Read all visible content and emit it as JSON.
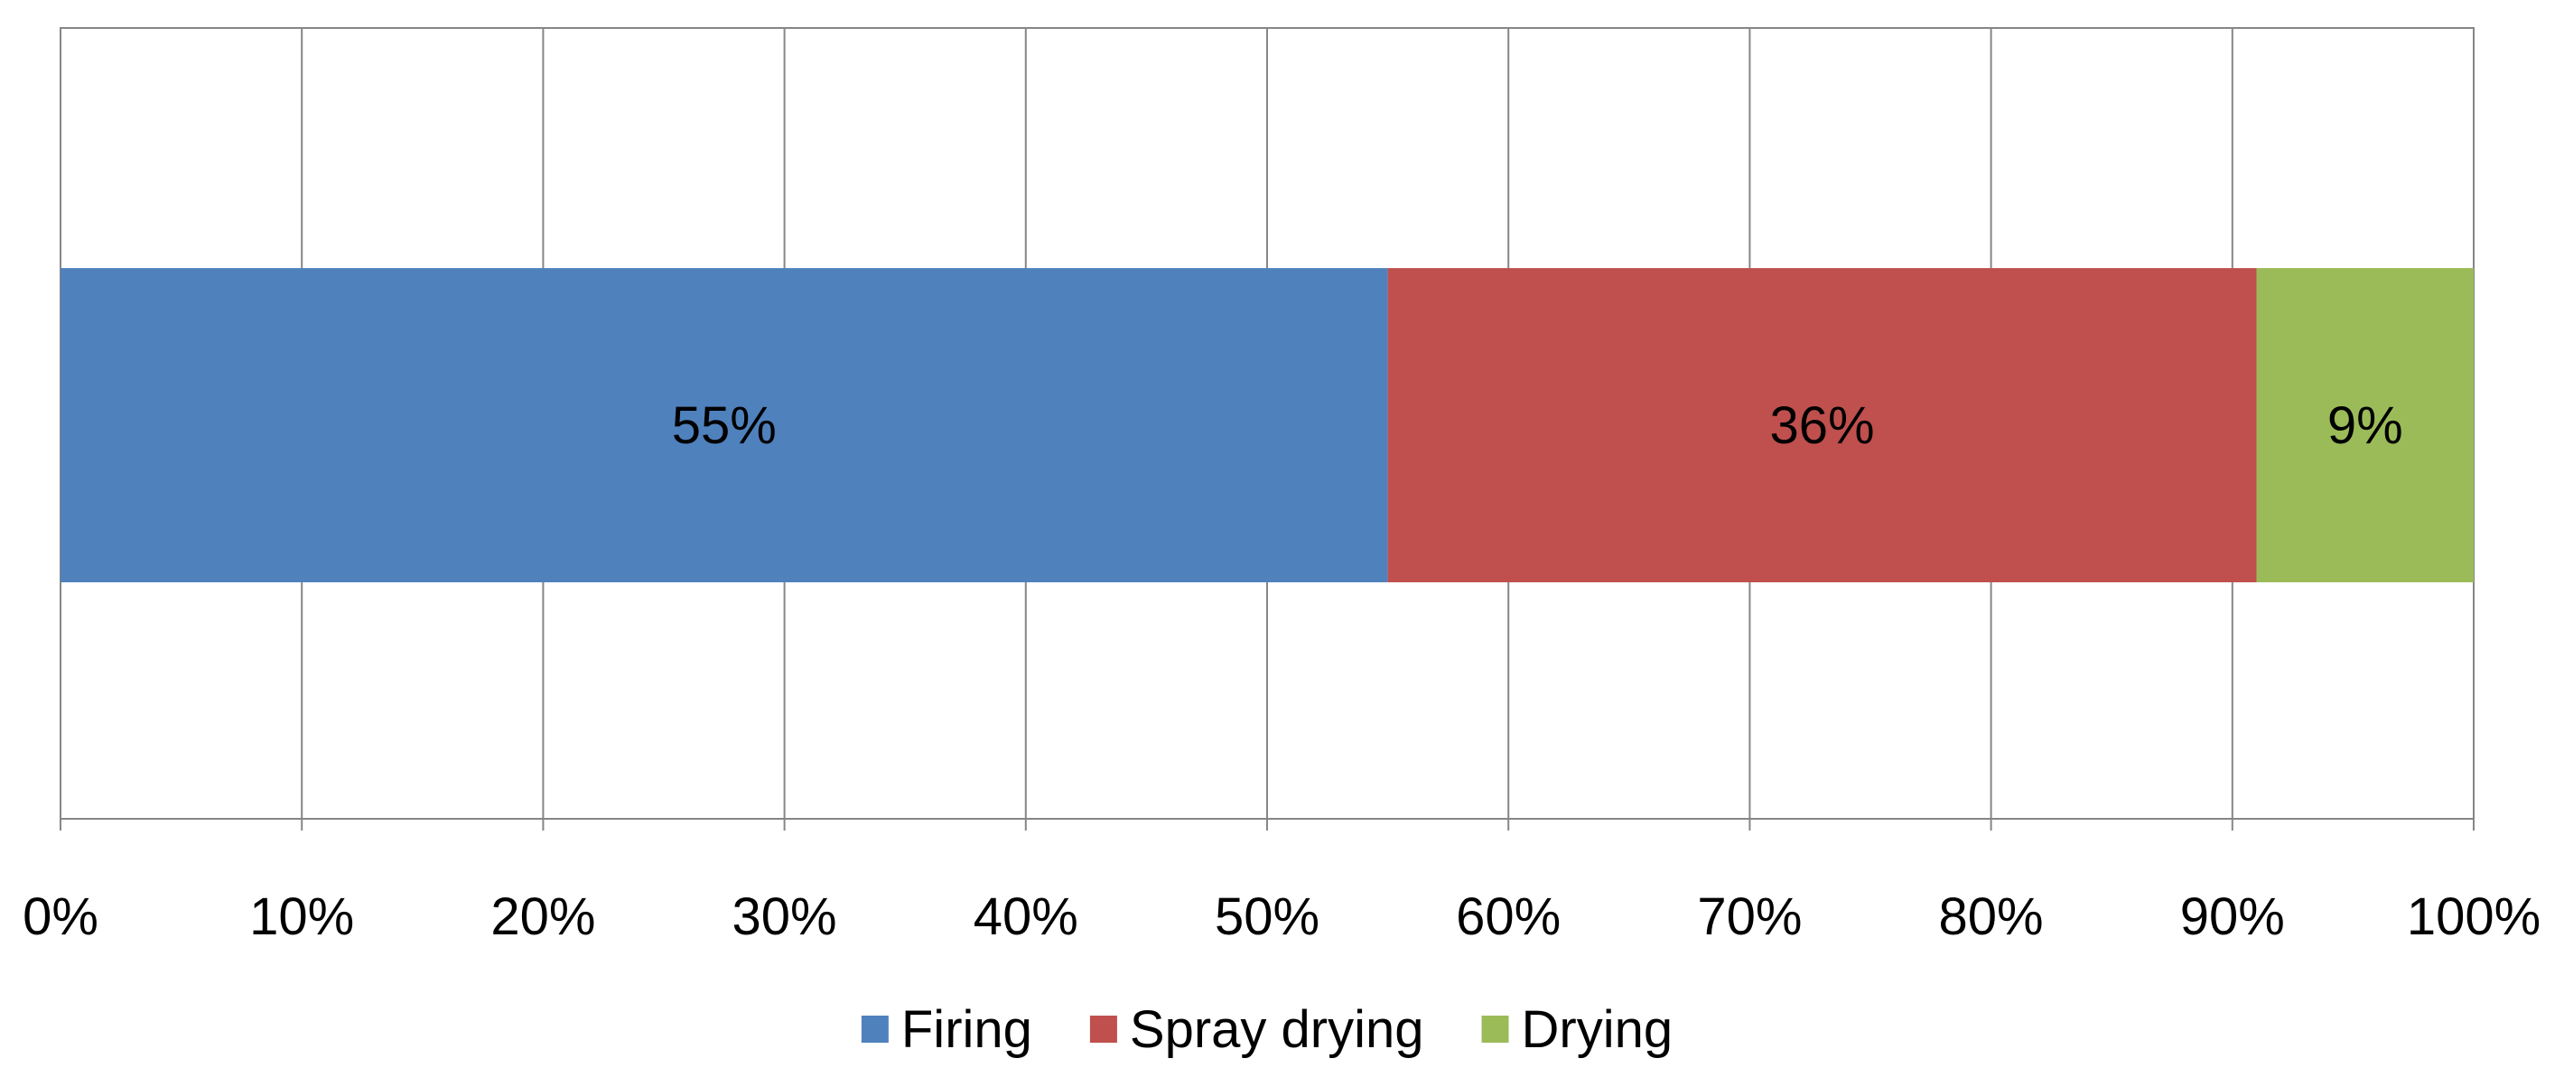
{
  "chart_data": {
    "type": "bar",
    "orientation": "horizontal",
    "stacked": true,
    "title": "",
    "xlabel": "",
    "ylabel": "",
    "xlim": [
      0,
      100
    ],
    "x_tick_labels": [
      "0%",
      "10%",
      "20%",
      "30%",
      "40%",
      "50%",
      "60%",
      "70%",
      "80%",
      "90%",
      "100%"
    ],
    "categories": [
      ""
    ],
    "series": [
      {
        "name": "Firing",
        "values": [
          55
        ],
        "label": "55%",
        "color": "#4f81bd"
      },
      {
        "name": "Spray drying",
        "values": [
          36
        ],
        "label": "36%",
        "color": "#c0504d"
      },
      {
        "name": "Drying",
        "values": [
          9
        ],
        "label": "9%",
        "color": "#9bbb59"
      }
    ],
    "grid": true,
    "legend_position": "bottom"
  }
}
